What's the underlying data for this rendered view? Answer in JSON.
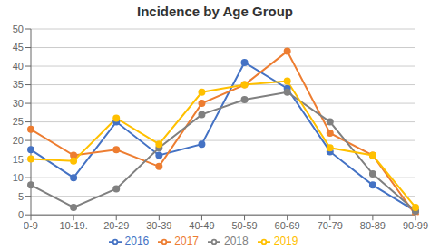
{
  "chart_data": {
    "type": "line",
    "title": "Incidence by Age Group",
    "categories": [
      "0-9",
      "10-19.",
      "20-29",
      "30-39",
      "40-49",
      "50-59",
      "60-69",
      "70-79",
      "80-89",
      "90-99"
    ],
    "series": [
      {
        "name": "2016",
        "color": "#4472C4",
        "marker": "circle",
        "values": [
          17.5,
          10,
          25,
          16,
          19,
          41,
          34,
          17,
          8,
          1
        ]
      },
      {
        "name": "2017",
        "color": "#ED7D31",
        "marker": "circle",
        "values": [
          23,
          16,
          17.5,
          13,
          30,
          35,
          44,
          22,
          16,
          0
        ]
      },
      {
        "name": "2018",
        "color": "#808080",
        "marker": "circle",
        "values": [
          8,
          2,
          7,
          18,
          27,
          31,
          33,
          25,
          11,
          1
        ]
      },
      {
        "name": "2019",
        "color": "#FFC000",
        "marker": "circle",
        "values": [
          15,
          14.5,
          26,
          19,
          33,
          35,
          36,
          18,
          16,
          2
        ]
      }
    ],
    "ylim": [
      0,
      50
    ],
    "yticks": [
      0,
      5,
      10,
      15,
      20,
      25,
      30,
      35,
      40,
      45,
      50
    ],
    "grid": true,
    "legend": "bottom"
  }
}
